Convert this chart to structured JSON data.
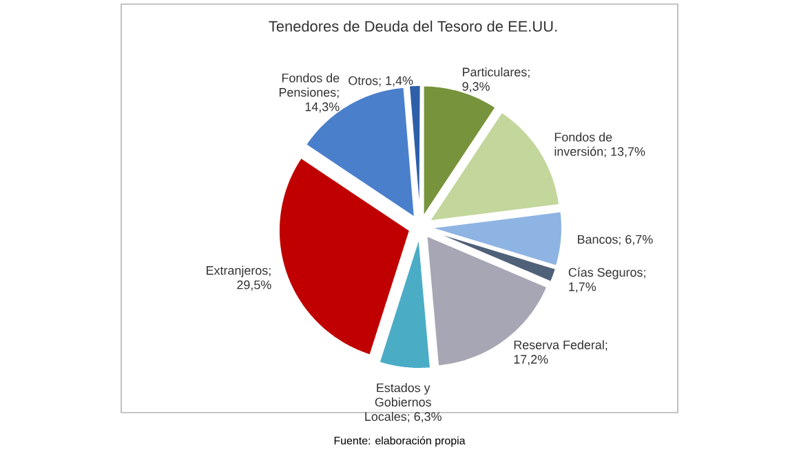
{
  "chart_data": {
    "type": "pie",
    "title": "Tenedores de Deuda del Tesoro de EE.UU.",
    "categories": [
      "Particulares",
      "Fondos de inversión",
      "Bancos",
      "Cías Seguros",
      "Reserva Federal",
      "Estados y Gobiernos Locales",
      "Extranjeros",
      "Fondos de Pensiones",
      "Otros"
    ],
    "values": [
      9.3,
      13.7,
      6.7,
      1.7,
      17.2,
      6.3,
      29.5,
      14.3,
      1.4
    ],
    "value_labels": [
      "; 9,3%",
      "; 13,7%",
      "; 6,7%",
      "; 1,7%",
      "; 17,2%",
      "; 6,3%",
      "; 29,5%",
      "; 14,3%",
      "; 1,4%"
    ],
    "colors": [
      "#77933c",
      "#c3d69b",
      "#8eb4e3",
      "#4f6179",
      "#a6a6b4",
      "#4bacc6",
      "#c00000",
      "#4a7fcb",
      "#2e5fa8"
    ],
    "annotations": [
      "Fuente: elaboración propia"
    ]
  }
}
